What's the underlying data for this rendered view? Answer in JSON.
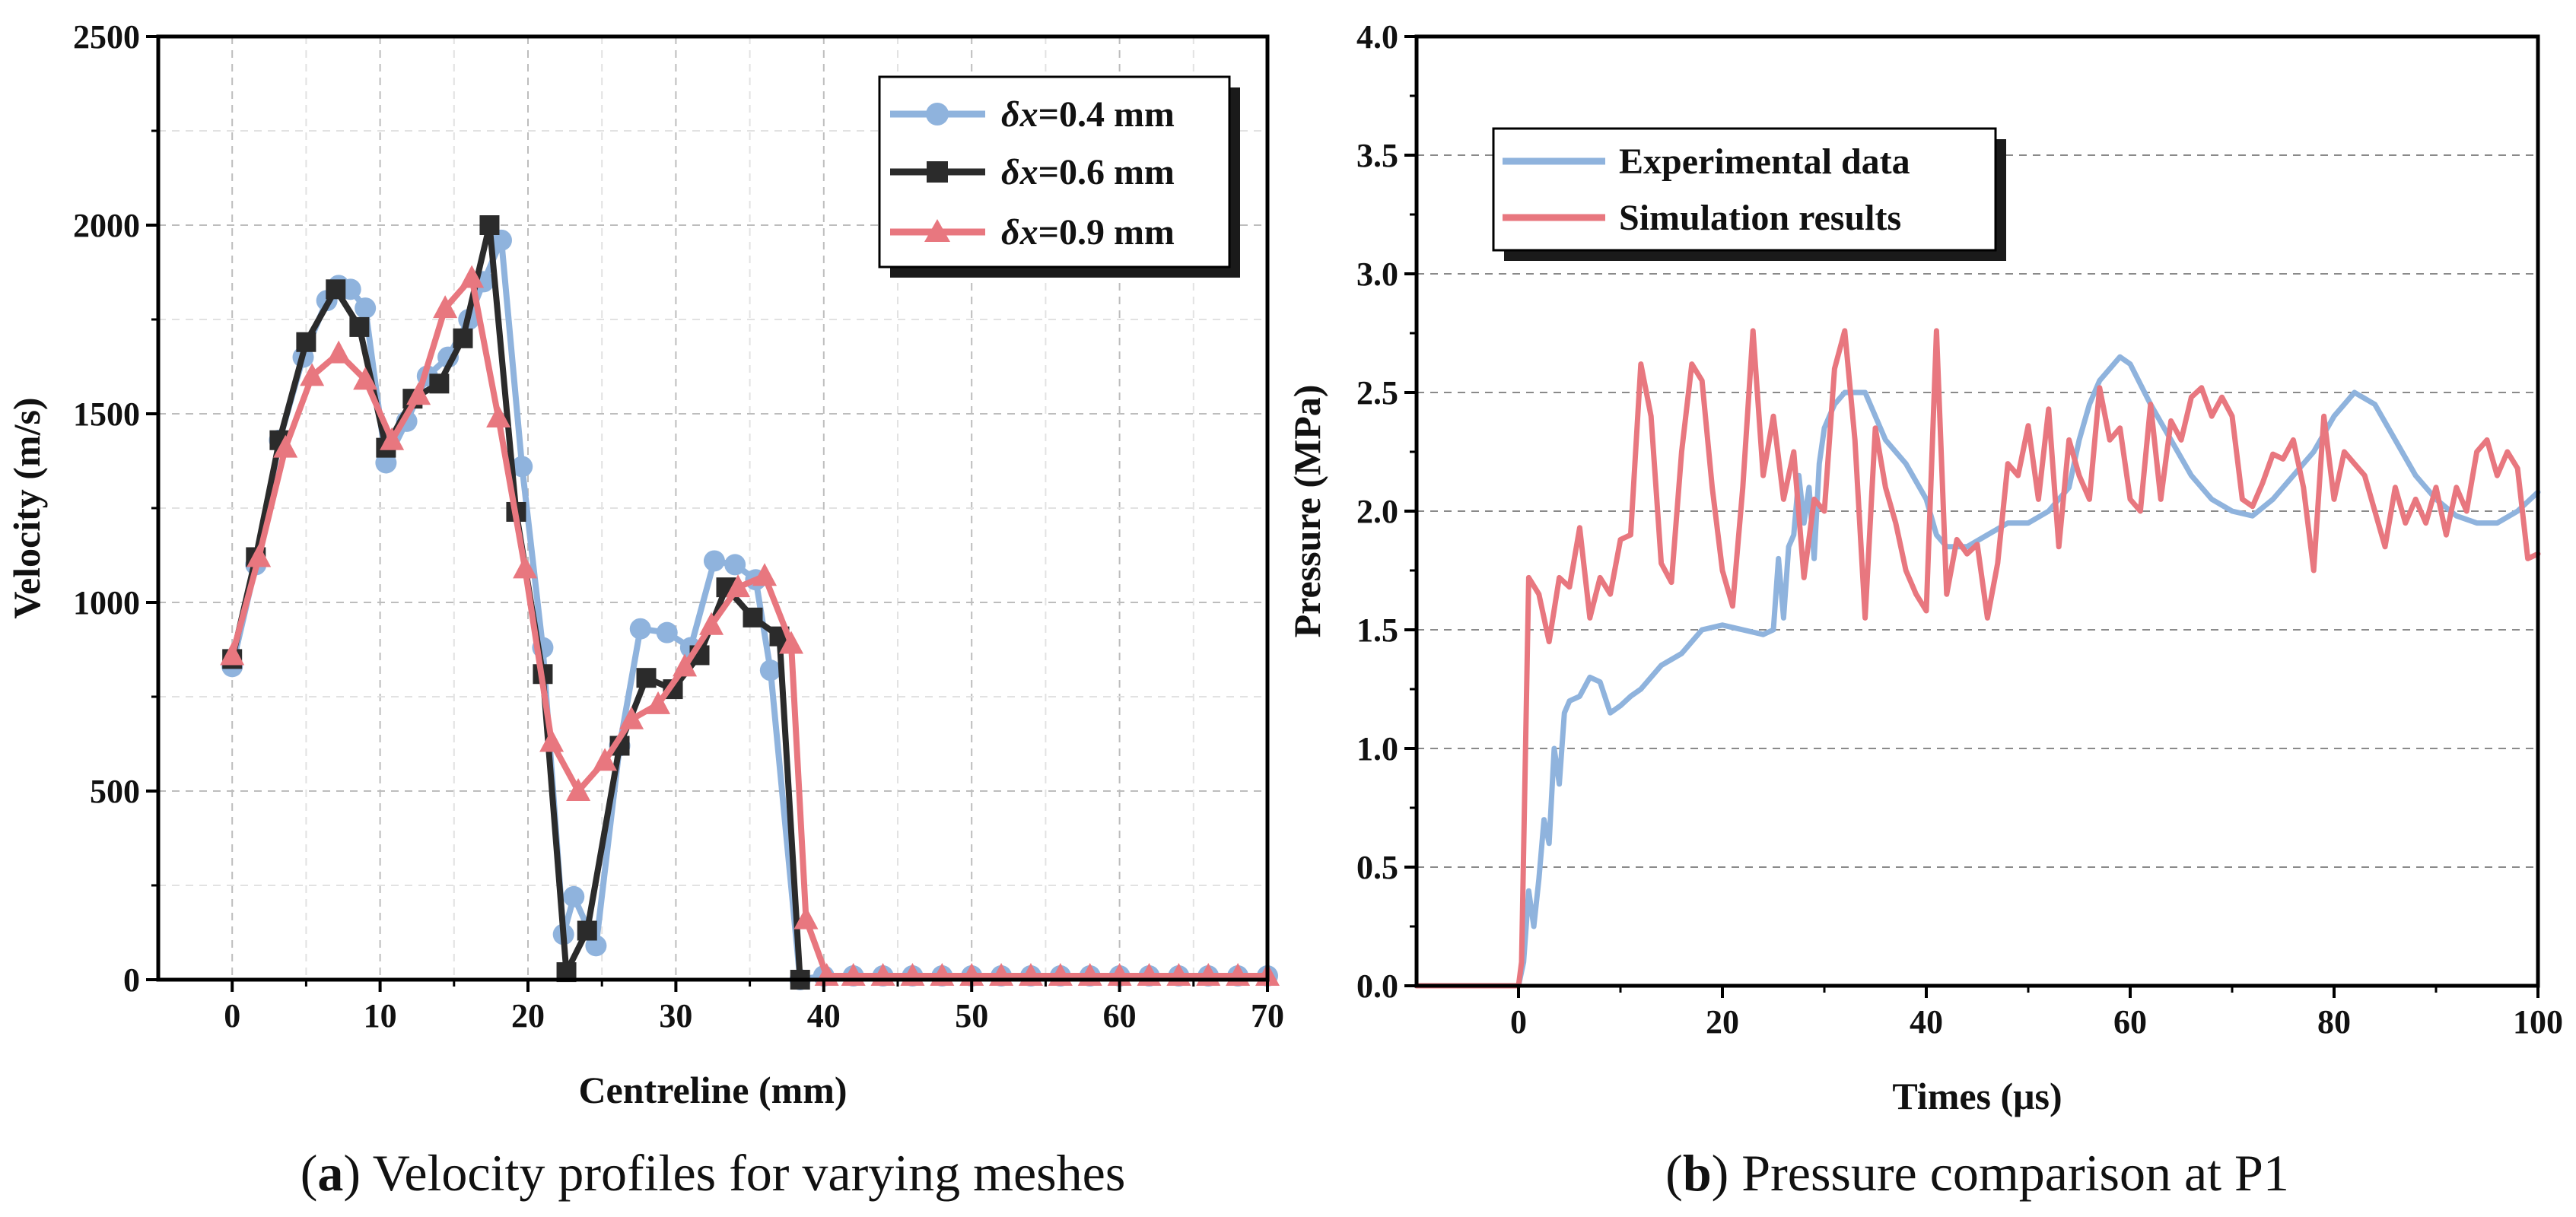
{
  "colors": {
    "blue": "#8fb3dd",
    "black": "#2b2b2b",
    "red": "#e8777f",
    "grid": "#bdbdbd",
    "axis": "#000000"
  },
  "chart_data": [
    {
      "type": "line",
      "id": "a",
      "caption_label": "a",
      "caption_text": "Velocity profiles for varying meshes",
      "xlabel": "Centreline (mm)",
      "ylabel": "Velocity (m/s)",
      "xlim": [
        -5,
        70
      ],
      "ylim": [
        0,
        2500
      ],
      "xticks": [
        0,
        10,
        20,
        30,
        40,
        50,
        60,
        70
      ],
      "yticks": [
        0,
        500,
        1000,
        1500,
        2000,
        2500
      ],
      "xtick_labels": [
        "0",
        "10",
        "20",
        "30",
        "40",
        "50",
        "60",
        "70"
      ],
      "ytick_labels": [
        "0",
        "500",
        "1000",
        "1500",
        "2000",
        "2500"
      ],
      "legend_position": "top-right",
      "series": [
        {
          "name": "δx=0.4 mm",
          "legend_math": "δx",
          "legend_rest": "=0.4 mm",
          "color": "#8fb3dd",
          "marker": "circle",
          "x": [
            0,
            1.6,
            3.2,
            4.8,
            6.4,
            7.2,
            8,
            9,
            10.4,
            11.8,
            13.2,
            14.6,
            16,
            17,
            18.2,
            19.6,
            21,
            22.4,
            23.1,
            24.6,
            26.2,
            27.6,
            29.4,
            31,
            32.6,
            34,
            35.4,
            36.4,
            38.4,
            40,
            42,
            44,
            46,
            48,
            50,
            52,
            54,
            56,
            58,
            60,
            62,
            64,
            66,
            68,
            70
          ],
          "y": [
            830,
            1100,
            1430,
            1650,
            1800,
            1840,
            1830,
            1780,
            1370,
            1480,
            1600,
            1650,
            1750,
            1850,
            1960,
            1360,
            880,
            120,
            220,
            90,
            620,
            930,
            920,
            880,
            1110,
            1100,
            1060,
            820,
            0,
            10,
            10,
            10,
            10,
            10,
            10,
            10,
            10,
            10,
            10,
            10,
            10,
            10,
            10,
            10,
            10
          ]
        },
        {
          "name": "δx=0.6 mm",
          "legend_math": "δx",
          "legend_rest": "=0.6 mm",
          "color": "#2b2b2b",
          "marker": "square",
          "x": [
            0,
            1.6,
            3.2,
            5,
            7,
            8.6,
            10.4,
            12.2,
            14,
            15.6,
            17.4,
            19.2,
            21,
            22.6,
            24,
            26.2,
            28,
            29.8,
            31.6,
            33.4,
            35.2,
            37,
            38.4
          ],
          "y": [
            850,
            1120,
            1430,
            1690,
            1830,
            1730,
            1410,
            1540,
            1580,
            1700,
            2000,
            1240,
            810,
            20,
            130,
            620,
            800,
            770,
            860,
            1040,
            960,
            910,
            0
          ]
        },
        {
          "name": "δx=0.9 mm",
          "legend_math": "δx",
          "legend_rest": "=0.9 mm",
          "color": "#e8777f",
          "marker": "triangle",
          "x": [
            0,
            1.8,
            3.6,
            5.4,
            7.2,
            9,
            10.8,
            12.6,
            14.4,
            16.2,
            18,
            19.8,
            21.6,
            23.4,
            25.2,
            27,
            28.8,
            30.6,
            32.4,
            34.2,
            36,
            37.8,
            38.8,
            40.2,
            42,
            44,
            46,
            48,
            50,
            52,
            54,
            56,
            58,
            60,
            62,
            64,
            66,
            68,
            70
          ],
          "y": [
            860,
            1120,
            1410,
            1600,
            1660,
            1590,
            1430,
            1550,
            1780,
            1860,
            1490,
            1090,
            630,
            500,
            580,
            690,
            730,
            830,
            940,
            1040,
            1070,
            890,
            160,
            10,
            10,
            10,
            10,
            10,
            10,
            10,
            10,
            10,
            10,
            10,
            10,
            10,
            10,
            10,
            10
          ]
        }
      ]
    },
    {
      "type": "line",
      "id": "b",
      "caption_label": "b",
      "caption_text": "Pressure comparison at P1",
      "xlabel": "Times (μs)",
      "ylabel": "Pressure (MPa)",
      "xlim": [
        -10,
        100
      ],
      "ylim": [
        0,
        4.0
      ],
      "xticks": [
        0,
        20,
        40,
        60,
        80,
        100
      ],
      "yticks": [
        0,
        0.5,
        1.0,
        1.5,
        2.0,
        2.5,
        3.0,
        3.5,
        4.0
      ],
      "xtick_labels": [
        "0",
        "20",
        "40",
        "60",
        "80",
        "100"
      ],
      "ytick_labels": [
        "0.0",
        "0.5",
        "1.0",
        "1.5",
        "2.0",
        "2.5",
        "3.0",
        "3.5",
        "4.0"
      ],
      "legend_position": "top-left",
      "series": [
        {
          "name": "Experimental data",
          "color": "#8fb3dd",
          "x": [
            -10,
            0,
            0.5,
            1,
            1.5,
            2,
            2.5,
            3,
            3.5,
            4,
            4.5,
            5,
            6,
            7,
            8,
            9,
            10,
            11,
            12,
            13,
            14,
            16,
            18,
            20,
            22,
            24,
            25,
            25.5,
            26,
            26.5,
            27,
            27.5,
            28,
            28.5,
            29,
            29.5,
            30,
            31,
            32,
            34,
            36,
            38,
            40,
            41,
            42,
            44,
            46,
            48,
            50,
            52,
            54,
            55,
            56,
            57,
            58,
            59,
            60,
            62,
            64,
            66,
            68,
            70,
            72,
            74,
            76,
            78,
            80,
            82,
            84,
            86,
            88,
            90,
            92,
            94,
            96,
            98,
            100
          ],
          "y": [
            0,
            0,
            0.1,
            0.4,
            0.25,
            0.45,
            0.7,
            0.6,
            1.0,
            0.85,
            1.15,
            1.2,
            1.22,
            1.3,
            1.28,
            1.15,
            1.18,
            1.22,
            1.25,
            1.3,
            1.35,
            1.4,
            1.5,
            1.52,
            1.5,
            1.48,
            1.5,
            1.8,
            1.55,
            1.85,
            1.9,
            2.15,
            1.95,
            2.1,
            1.8,
            2.2,
            2.35,
            2.45,
            2.5,
            2.5,
            2.3,
            2.2,
            2.05,
            1.9,
            1.85,
            1.85,
            1.9,
            1.95,
            1.95,
            2.0,
            2.1,
            2.3,
            2.45,
            2.55,
            2.6,
            2.65,
            2.62,
            2.45,
            2.3,
            2.15,
            2.05,
            2.0,
            1.98,
            2.05,
            2.15,
            2.25,
            2.4,
            2.5,
            2.45,
            2.3,
            2.15,
            2.05,
            1.98,
            1.95,
            1.95,
            2.0,
            2.08
          ]
        },
        {
          "name": "Simulation results",
          "color": "#e8777f",
          "x": [
            -10,
            0,
            0.3,
            1,
            2,
            3,
            4,
            5,
            6,
            7,
            8,
            9,
            10,
            11,
            12,
            13,
            14,
            15,
            16,
            17,
            18,
            19,
            20,
            21,
            22,
            23,
            24,
            25,
            26,
            27,
            28,
            29,
            30,
            31,
            32,
            33,
            34,
            35,
            36,
            37,
            38,
            39,
            40,
            41,
            42,
            43,
            44,
            45,
            46,
            47,
            48,
            49,
            50,
            51,
            52,
            53,
            54,
            55,
            56,
            57,
            58,
            59,
            60,
            61,
            62,
            63,
            64,
            65,
            66,
            67,
            68,
            69,
            70,
            71,
            72,
            73,
            74,
            75,
            76,
            77,
            78,
            79,
            80,
            81,
            82,
            83,
            84,
            85,
            86,
            87,
            88,
            89,
            90,
            91,
            92,
            93,
            94,
            95,
            96,
            97,
            98,
            99,
            100
          ],
          "y": [
            0,
            0,
            0.1,
            1.72,
            1.65,
            1.45,
            1.72,
            1.68,
            1.93,
            1.55,
            1.72,
            1.65,
            1.88,
            1.9,
            2.62,
            2.4,
            1.78,
            1.7,
            2.25,
            2.62,
            2.55,
            2.1,
            1.75,
            1.6,
            2.1,
            2.76,
            2.15,
            2.4,
            2.05,
            2.25,
            1.72,
            2.05,
            2.0,
            2.6,
            2.76,
            2.3,
            1.55,
            2.35,
            2.1,
            1.95,
            1.75,
            1.65,
            1.58,
            2.76,
            1.65,
            1.88,
            1.82,
            1.86,
            1.55,
            1.78,
            2.2,
            2.15,
            2.36,
            2.05,
            2.43,
            1.85,
            2.3,
            2.15,
            2.05,
            2.52,
            2.3,
            2.35,
            2.05,
            2.0,
            2.45,
            2.05,
            2.38,
            2.3,
            2.48,
            2.52,
            2.4,
            2.48,
            2.4,
            2.05,
            2.02,
            2.12,
            2.24,
            2.22,
            2.3,
            2.1,
            1.75,
            2.4,
            2.05,
            2.25,
            2.2,
            2.15,
            2.0,
            1.85,
            2.1,
            1.95,
            2.05,
            1.95,
            2.1,
            1.9,
            2.1,
            2.0,
            2.25,
            2.3,
            2.15,
            2.25,
            2.18,
            1.8,
            1.82
          ]
        }
      ]
    }
  ]
}
